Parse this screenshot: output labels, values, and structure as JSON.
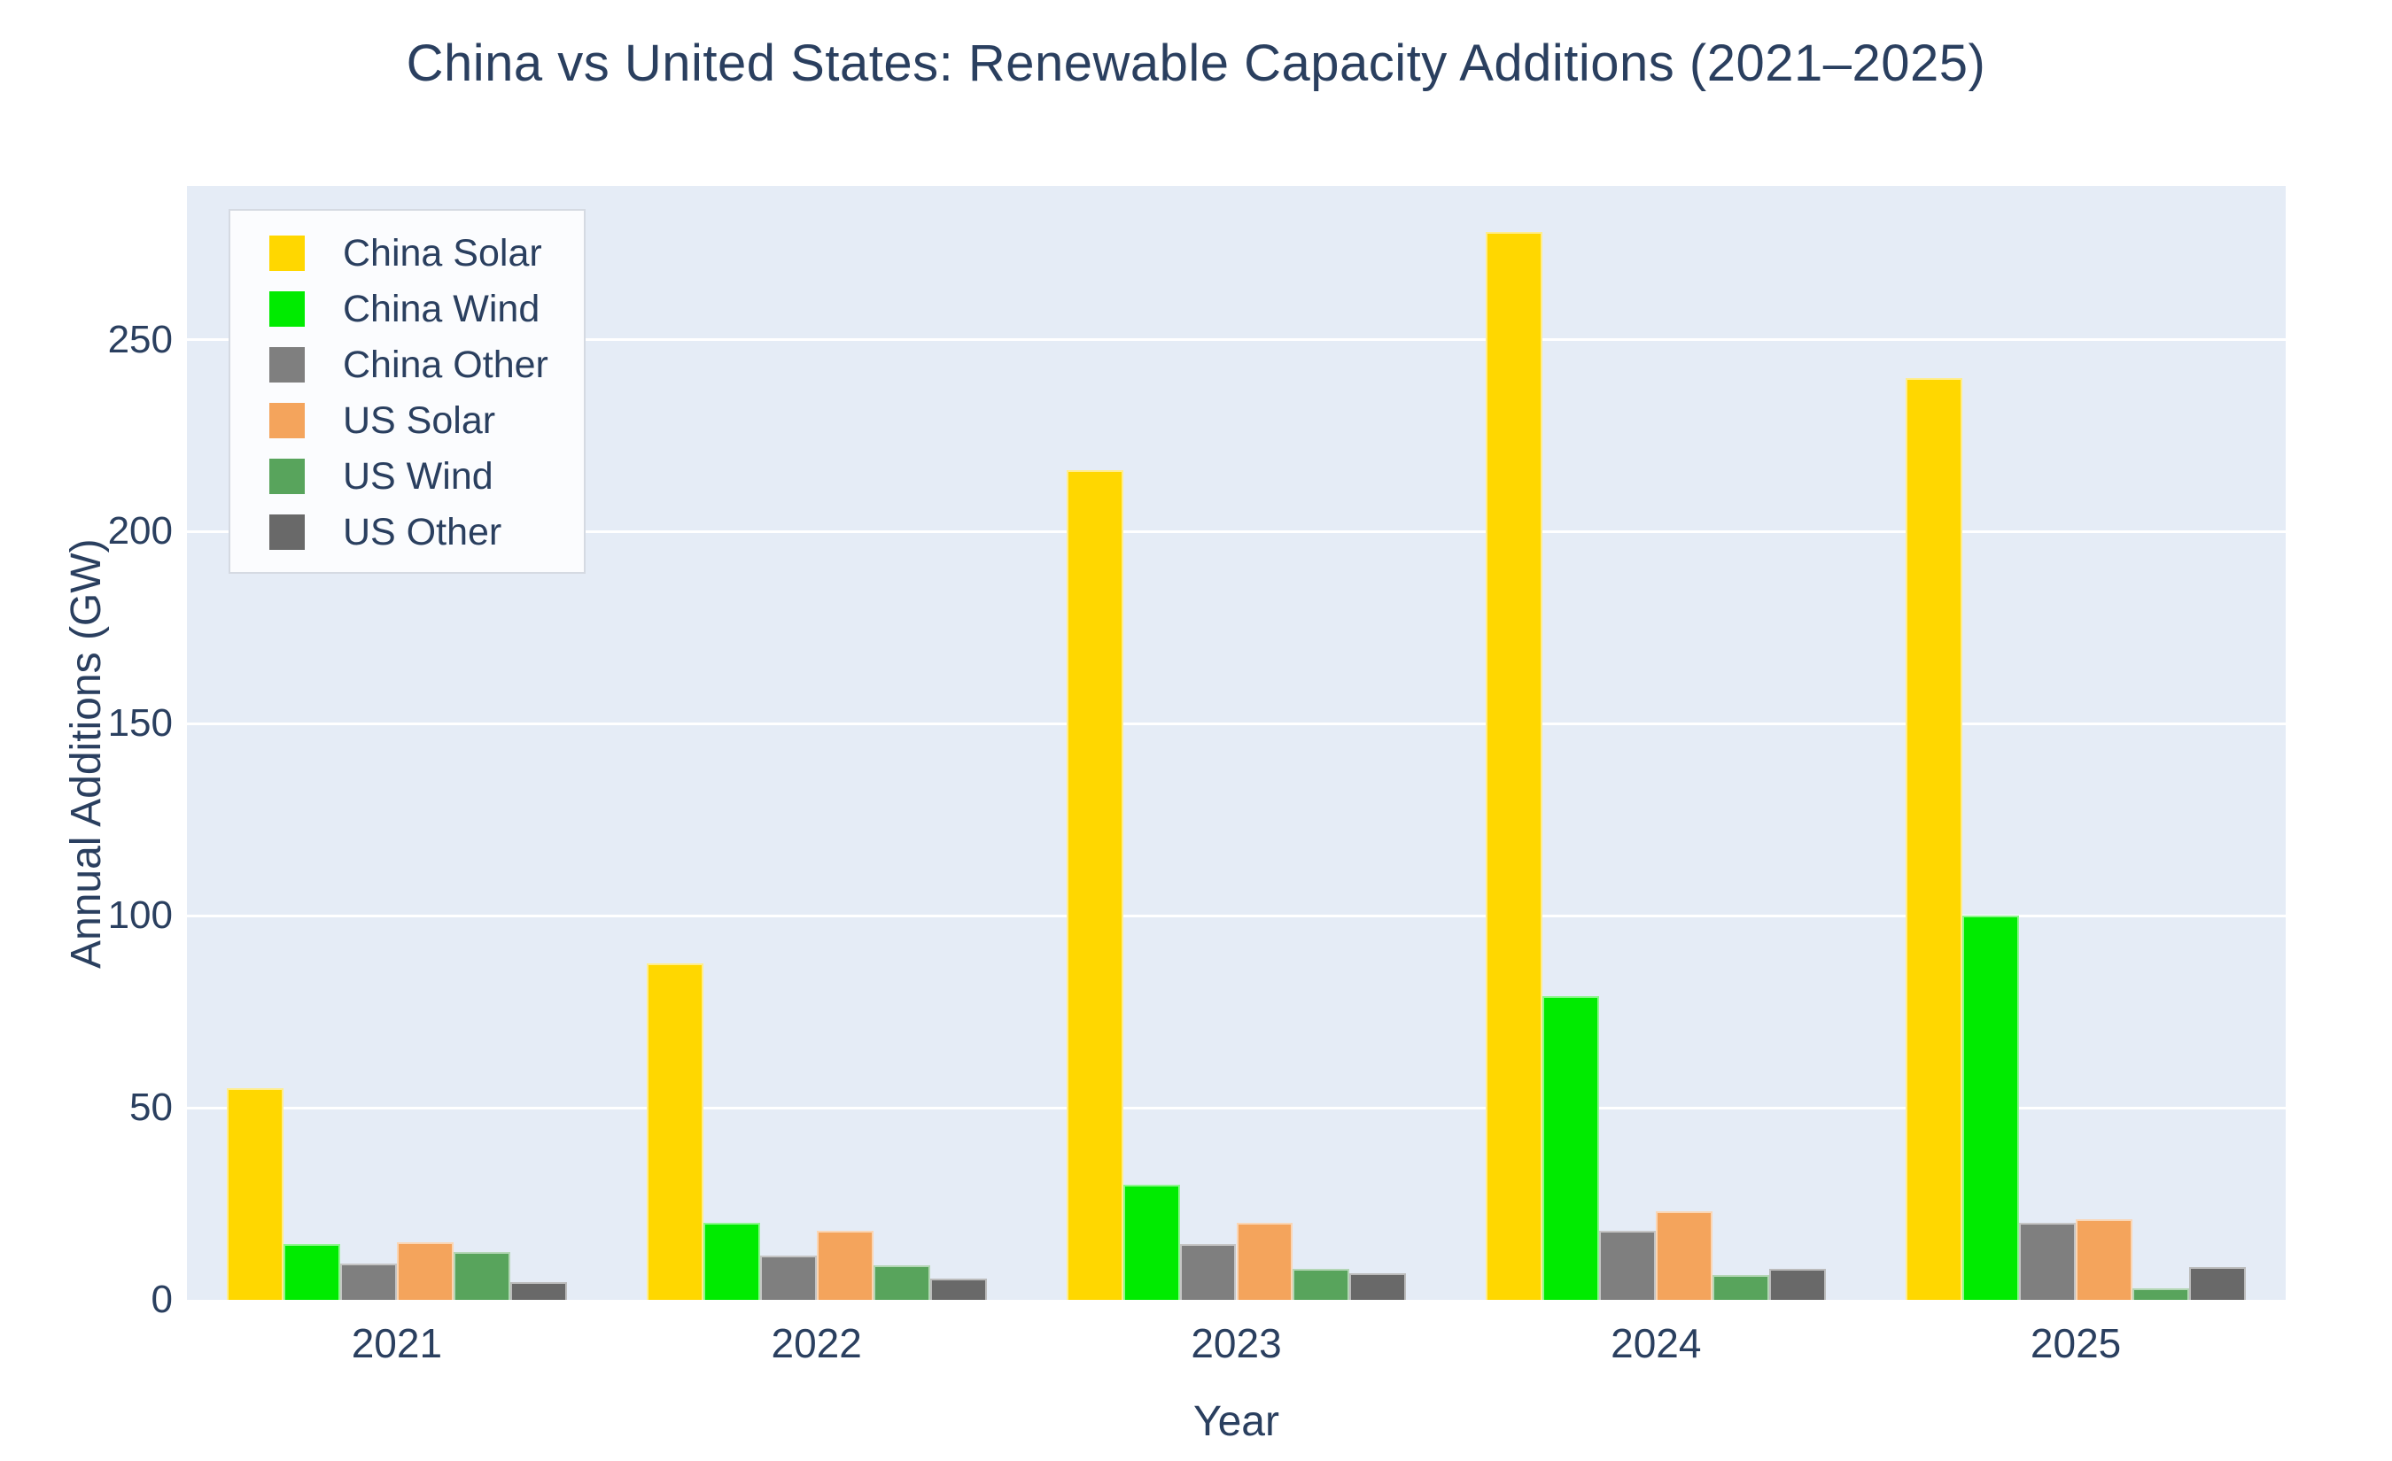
{
  "title": "China vs United States: Renewable Capacity Additions (2021–2025)",
  "colors": {
    "text": "#2a3f5f",
    "plot_background": "#e5ecf6",
    "gridline": "#ffffff",
    "legend_background": "#fbfcfe",
    "legend_border": "#d5dae2",
    "page_background": "#ffffff"
  },
  "chart_data": {
    "type": "bar",
    "title": "China vs United States: Renewable Capacity Additions (2021–2025)",
    "xlabel": "Year",
    "ylabel": "Annual Additions (GW)",
    "categories": [
      "2021",
      "2022",
      "2023",
      "2024",
      "2025"
    ],
    "series": [
      {
        "name": "China Solar",
        "color": "#FFD700",
        "values": [
          55,
          87.5,
          216,
          278,
          240
        ]
      },
      {
        "name": "China Wind",
        "color": "#00EB00",
        "values": [
          14.5,
          20,
          30,
          79,
          100
        ]
      },
      {
        "name": "China Other",
        "color": "#7F7F7F",
        "values": [
          9.5,
          11.5,
          14.5,
          18,
          20
        ]
      },
      {
        "name": "US Solar",
        "color": "#F4A45C",
        "values": [
          15,
          18,
          20,
          23,
          21
        ]
      },
      {
        "name": "US Wind",
        "color": "#58A45C",
        "values": [
          12.5,
          9,
          8,
          6.5,
          3
        ]
      },
      {
        "name": "US Other",
        "color": "#696969",
        "values": [
          4.5,
          5.5,
          7,
          8,
          8.5
        ]
      }
    ],
    "ylim": [
      0,
      290
    ],
    "yticks": [
      0,
      50,
      100,
      150,
      200,
      250
    ],
    "grid": true,
    "legend_position": "top-left",
    "bar_group_fill_ratio": 0.81
  },
  "layout_note_values_in_GW": true
}
